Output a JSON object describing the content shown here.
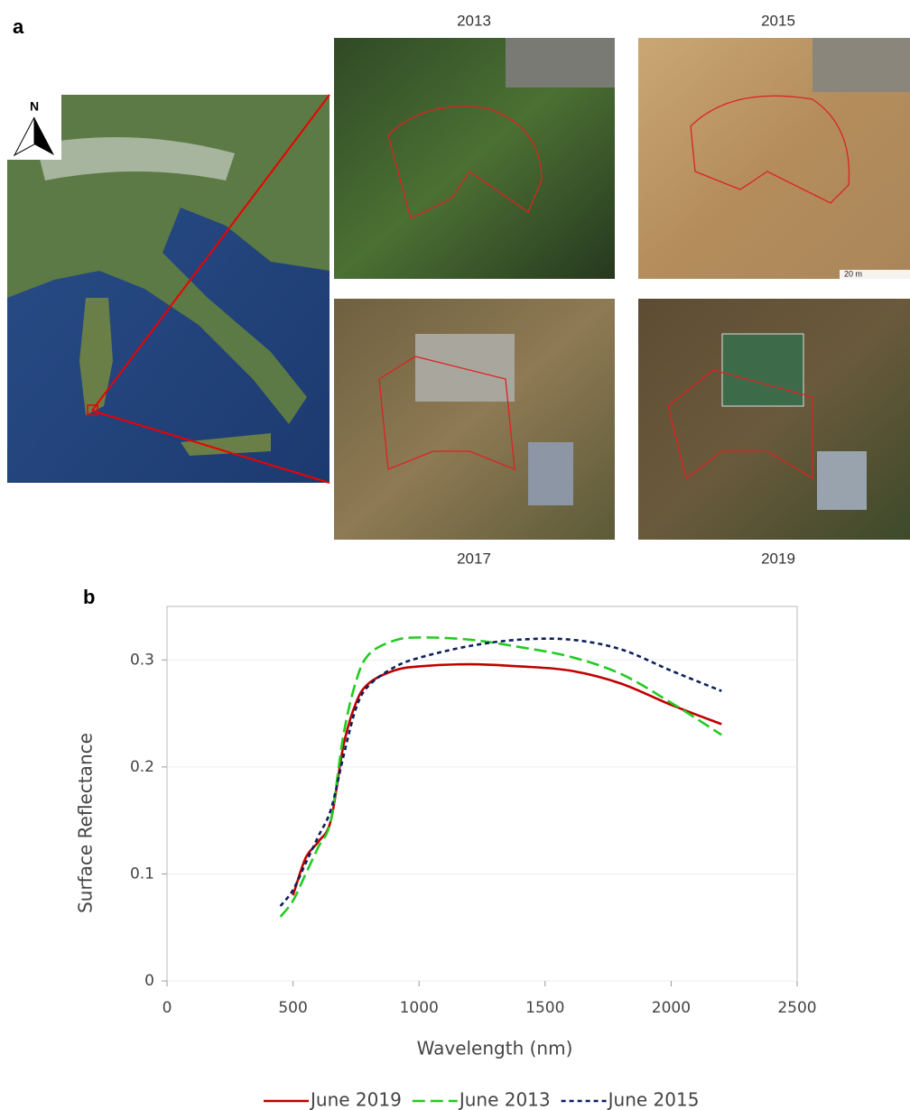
{
  "panel_labels": [
    "a",
    "b"
  ],
  "map": {
    "north": "N"
  },
  "photos": [
    {
      "year": "2013"
    },
    {
      "year": "2015"
    },
    {
      "year": "2017"
    },
    {
      "year": "2019"
    }
  ],
  "scale_bar": "20 m",
  "chart_data": {
    "type": "line",
    "x_label": "Wavelength (nm)",
    "y_label": "Surface Reflectance",
    "x": [
      450,
      500,
      550,
      600,
      650,
      700,
      750,
      800,
      900,
      1000,
      1200,
      1400,
      1600,
      1800,
      2000,
      2200
    ],
    "series": [
      {
        "name": "June 2019",
        "color": "#c00000",
        "dash": "solid",
        "values": [
          null,
          0.08,
          0.115,
          0.13,
          0.15,
          0.22,
          0.26,
          0.278,
          0.29,
          0.294,
          0.296,
          0.294,
          0.29,
          0.278,
          0.258,
          0.24
        ]
      },
      {
        "name": "June 2013",
        "color": "#22cc22",
        "dash": "dashed",
        "values": [
          0.06,
          0.075,
          0.1,
          0.125,
          0.15,
          0.23,
          0.28,
          0.305,
          0.318,
          0.321,
          0.319,
          0.312,
          0.303,
          0.287,
          0.26,
          0.23
        ]
      },
      {
        "name": "June 2015",
        "color": "#0d1f5c",
        "dash": "dotted",
        "values": [
          0.07,
          0.085,
          0.11,
          0.135,
          0.16,
          0.21,
          0.255,
          0.276,
          0.293,
          0.302,
          0.313,
          0.319,
          0.319,
          0.31,
          0.29,
          0.271
        ]
      }
    ],
    "xlim": [
      0,
      2500
    ],
    "xticks": [
      0,
      500,
      1000,
      1500,
      2000,
      2500
    ],
    "ylim": [
      0,
      0.35
    ],
    "yticks": [
      0,
      0.1,
      0.2,
      0.3
    ],
    "grid": true,
    "legend": "bottom"
  }
}
